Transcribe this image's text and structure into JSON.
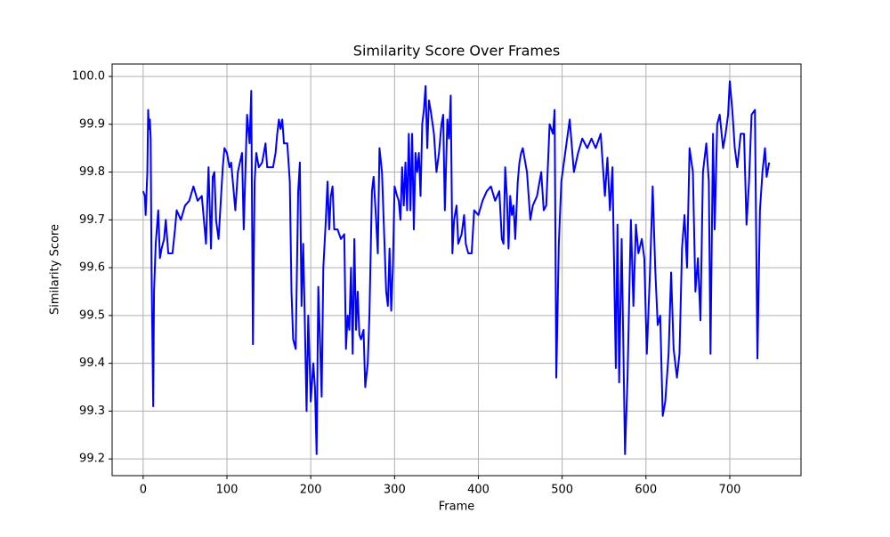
{
  "chart_data": {
    "type": "line",
    "title": "Similarity Score Over Frames",
    "x_label": "Frame",
    "y_label": "Similarity Score",
    "x": [
      0,
      2,
      3,
      5,
      6,
      7,
      8,
      9,
      10,
      12,
      13,
      15,
      18,
      20,
      22,
      25,
      27,
      30,
      35,
      38,
      40,
      45,
      50,
      55,
      60,
      65,
      70,
      75,
      78,
      81,
      83,
      85,
      87,
      90,
      92,
      95,
      97,
      100,
      103,
      105,
      107,
      110,
      113,
      118,
      120,
      122,
      124,
      127,
      129,
      131,
      133,
      135,
      138,
      142,
      146,
      148,
      155,
      158,
      160,
      162,
      164,
      166,
      168,
      172,
      175,
      177,
      179,
      182,
      185,
      187,
      189,
      191,
      193,
      195,
      197,
      200,
      203,
      205,
      207,
      209,
      211,
      213,
      215,
      218,
      220,
      222,
      224,
      226,
      228,
      232,
      236,
      240,
      242,
      244,
      246,
      248,
      250,
      252,
      254,
      256,
      258,
      260,
      263,
      265,
      268,
      270,
      273,
      275,
      278,
      280,
      282,
      285,
      287,
      290,
      292,
      294,
      296,
      298,
      300,
      303,
      305,
      307,
      309,
      311,
      313,
      315,
      317,
      319,
      321,
      323,
      325,
      327,
      329,
      331,
      333,
      335,
      337,
      339,
      341,
      343,
      347,
      350,
      353,
      356,
      358,
      360,
      363,
      365,
      367,
      369,
      371,
      374,
      376,
      380,
      383,
      385,
      388,
      392,
      395,
      400,
      405,
      410,
      415,
      420,
      425,
      428,
      430,
      432,
      434,
      436,
      438,
      440,
      442,
      444,
      447,
      449,
      451,
      453,
      458,
      462,
      465,
      470,
      475,
      478,
      481,
      485,
      489,
      491,
      493,
      496,
      499,
      509,
      514,
      519,
      524,
      530,
      535,
      540,
      546,
      551,
      554,
      557,
      559,
      560,
      564,
      566,
      568,
      571,
      575,
      578,
      582,
      585,
      588,
      591,
      595,
      598,
      601,
      605,
      608,
      611,
      614,
      617,
      620,
      623,
      627,
      630,
      633,
      637,
      640,
      643,
      646,
      649,
      652,
      656,
      659,
      662,
      665,
      668,
      672,
      675,
      677,
      680,
      682,
      685,
      688,
      692,
      695,
      698,
      700,
      703,
      706,
      709,
      713,
      717,
      720,
      723,
      726,
      730,
      733,
      736,
      739,
      742,
      744,
      747
    ],
    "series": [
      {
        "name": "Similarity Score",
        "color": "#0000ff",
        "values": [
          99.76,
          99.75,
          99.71,
          99.8,
          99.93,
          99.89,
          99.91,
          99.87,
          99.6,
          99.31,
          99.55,
          99.65,
          99.72,
          99.62,
          99.64,
          99.66,
          99.7,
          99.63,
          99.63,
          99.68,
          99.72,
          99.7,
          99.73,
          99.74,
          99.77,
          99.74,
          99.75,
          99.65,
          99.81,
          99.64,
          99.79,
          99.8,
          99.7,
          99.66,
          99.72,
          99.81,
          99.85,
          99.84,
          99.81,
          99.82,
          99.78,
          99.72,
          99.8,
          99.84,
          99.68,
          99.8,
          99.92,
          99.86,
          99.97,
          99.44,
          99.78,
          99.84,
          99.81,
          99.82,
          99.86,
          99.81,
          99.81,
          99.84,
          99.88,
          99.91,
          99.89,
          99.91,
          99.86,
          99.86,
          99.78,
          99.55,
          99.45,
          99.43,
          99.76,
          99.82,
          99.52,
          99.65,
          99.48,
          99.3,
          99.5,
          99.32,
          99.4,
          99.35,
          99.21,
          99.56,
          99.45,
          99.33,
          99.6,
          99.7,
          99.78,
          99.68,
          99.75,
          99.77,
          99.68,
          99.68,
          99.66,
          99.67,
          99.43,
          99.5,
          99.47,
          99.6,
          99.42,
          99.66,
          99.47,
          99.55,
          99.46,
          99.45,
          99.47,
          99.35,
          99.4,
          99.5,
          99.76,
          99.79,
          99.7,
          99.63,
          99.85,
          99.8,
          99.7,
          99.55,
          99.52,
          99.64,
          99.51,
          99.6,
          99.77,
          99.75,
          99.74,
          99.7,
          99.81,
          99.73,
          99.82,
          99.72,
          99.88,
          99.72,
          99.88,
          99.68,
          99.84,
          99.8,
          99.84,
          99.75,
          99.9,
          99.93,
          99.98,
          99.85,
          99.95,
          99.93,
          99.88,
          99.8,
          99.84,
          99.9,
          99.92,
          99.72,
          99.91,
          99.87,
          99.96,
          99.63,
          99.7,
          99.73,
          99.65,
          99.67,
          99.71,
          99.65,
          99.63,
          99.63,
          99.72,
          99.71,
          99.74,
          99.76,
          99.77,
          99.74,
          99.76,
          99.66,
          99.65,
          99.81,
          99.75,
          99.64,
          99.75,
          99.71,
          99.73,
          99.66,
          99.78,
          99.82,
          99.84,
          99.85,
          99.8,
          99.7,
          99.73,
          99.75,
          99.8,
          99.72,
          99.73,
          99.9,
          99.88,
          99.93,
          99.37,
          99.65,
          99.78,
          99.91,
          99.8,
          99.84,
          99.87,
          99.85,
          99.87,
          99.85,
          99.88,
          99.75,
          99.83,
          99.72,
          99.78,
          99.81,
          99.39,
          99.69,
          99.36,
          99.66,
          99.21,
          99.37,
          99.7,
          99.52,
          99.69,
          99.63,
          99.66,
          99.62,
          99.42,
          99.6,
          99.77,
          99.6,
          99.48,
          99.5,
          99.29,
          99.32,
          99.42,
          99.59,
          99.43,
          99.37,
          99.42,
          99.64,
          99.71,
          99.6,
          99.85,
          99.8,
          99.55,
          99.62,
          99.49,
          99.8,
          99.86,
          99.78,
          99.42,
          99.88,
          99.68,
          99.9,
          99.92,
          99.85,
          99.88,
          99.92,
          99.99,
          99.93,
          99.85,
          99.81,
          99.88,
          99.88,
          99.69,
          99.78,
          99.92,
          99.93,
          99.41,
          99.72,
          99.8,
          99.85,
          99.79,
          99.82
        ]
      }
    ],
    "xlim": [
      -37,
      785
    ],
    "ylim": [
      99.165,
      100.026
    ],
    "xticks": [
      0,
      100,
      200,
      300,
      400,
      500,
      600,
      700
    ],
    "yticks": [
      99.2,
      99.3,
      99.4,
      99.5,
      99.6,
      99.7,
      99.8,
      99.9,
      {
        "value": 100,
        "label": "100.0"
      }
    ],
    "grid": true
  }
}
